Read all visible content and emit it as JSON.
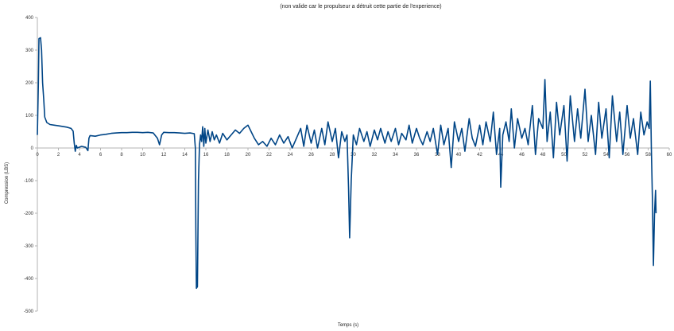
{
  "chart_data": {
    "type": "line",
    "title": "(non valide car le propulseur a détruit cette partie de l'experience)",
    "xlabel": "Temps (s)",
    "ylabel": "Compression (LBS)",
    "xlim": [
      0,
      60
    ],
    "ylim": [
      -500,
      400
    ],
    "x_ticks": [
      0,
      2,
      4,
      6,
      8,
      10,
      12,
      14,
      16,
      18,
      20,
      22,
      24,
      26,
      28,
      30,
      32,
      34,
      36,
      38,
      40,
      42,
      44,
      46,
      48,
      50,
      52,
      54,
      56,
      58,
      60
    ],
    "y_ticks": [
      -500,
      -400,
      -300,
      -200,
      -100,
      0,
      100,
      200,
      300,
      400
    ],
    "grid": false,
    "legend": "none",
    "series_color": "#004586",
    "series": [
      {
        "values": [
          [
            0.0,
            40
          ],
          [
            0.1,
            200
          ],
          [
            0.15,
            335
          ],
          [
            0.3,
            338
          ],
          [
            0.4,
            300
          ],
          [
            0.5,
            200
          ],
          [
            0.6,
            150
          ],
          [
            0.7,
            95
          ],
          [
            0.9,
            78
          ],
          [
            1.2,
            72
          ],
          [
            1.6,
            70
          ],
          [
            2.0,
            68
          ],
          [
            2.4,
            66
          ],
          [
            2.8,
            64
          ],
          [
            3.2,
            60
          ],
          [
            3.4,
            52
          ],
          [
            3.5,
            15
          ],
          [
            3.6,
            -10
          ],
          [
            3.7,
            8
          ],
          [
            3.8,
            0
          ],
          [
            4.2,
            5
          ],
          [
            4.6,
            2
          ],
          [
            4.8,
            -8
          ],
          [
            4.9,
            30
          ],
          [
            5.0,
            38
          ],
          [
            5.5,
            36
          ],
          [
            6.0,
            40
          ],
          [
            6.5,
            42
          ],
          [
            7.0,
            45
          ],
          [
            7.5,
            46
          ],
          [
            8.0,
            47
          ],
          [
            8.5,
            47
          ],
          [
            9.0,
            48
          ],
          [
            9.5,
            48
          ],
          [
            10.0,
            47
          ],
          [
            10.5,
            48
          ],
          [
            11.0,
            46
          ],
          [
            11.4,
            30
          ],
          [
            11.6,
            10
          ],
          [
            11.8,
            40
          ],
          [
            12.0,
            48
          ],
          [
            12.5,
            47
          ],
          [
            13.0,
            47
          ],
          [
            13.5,
            46
          ],
          [
            14.0,
            45
          ],
          [
            14.5,
            46
          ],
          [
            14.9,
            44
          ],
          [
            15.0,
            0
          ],
          [
            15.05,
            -250
          ],
          [
            15.1,
            -430
          ],
          [
            15.2,
            -425
          ],
          [
            15.25,
            -250
          ],
          [
            15.3,
            -100
          ],
          [
            15.4,
            10
          ],
          [
            15.5,
            40
          ],
          [
            15.6,
            20
          ],
          [
            15.7,
            65
          ],
          [
            15.8,
            5
          ],
          [
            15.9,
            60
          ],
          [
            16.0,
            15
          ],
          [
            16.2,
            55
          ],
          [
            16.4,
            20
          ],
          [
            16.6,
            50
          ],
          [
            16.8,
            25
          ],
          [
            17.0,
            40
          ],
          [
            17.3,
            15
          ],
          [
            17.6,
            45
          ],
          [
            18.0,
            25
          ],
          [
            18.4,
            40
          ],
          [
            18.8,
            55
          ],
          [
            19.2,
            45
          ],
          [
            19.6,
            60
          ],
          [
            20.0,
            70
          ],
          [
            20.3,
            50
          ],
          [
            20.6,
            30
          ],
          [
            21.0,
            10
          ],
          [
            21.4,
            20
          ],
          [
            21.8,
            5
          ],
          [
            22.2,
            30
          ],
          [
            22.6,
            10
          ],
          [
            23.0,
            40
          ],
          [
            23.4,
            15
          ],
          [
            23.8,
            35
          ],
          [
            24.2,
            0
          ],
          [
            24.6,
            30
          ],
          [
            25.0,
            60
          ],
          [
            25.3,
            5
          ],
          [
            25.6,
            70
          ],
          [
            26.0,
            15
          ],
          [
            26.3,
            55
          ],
          [
            26.6,
            0
          ],
          [
            27.0,
            60
          ],
          [
            27.3,
            10
          ],
          [
            27.6,
            80
          ],
          [
            28.0,
            20
          ],
          [
            28.3,
            60
          ],
          [
            28.6,
            -30
          ],
          [
            28.9,
            50
          ],
          [
            29.2,
            20
          ],
          [
            29.4,
            40
          ],
          [
            29.55,
            -120
          ],
          [
            29.65,
            -275
          ],
          [
            29.8,
            -100
          ],
          [
            30.0,
            40
          ],
          [
            30.3,
            10
          ],
          [
            30.6,
            60
          ],
          [
            31.0,
            20
          ],
          [
            31.3,
            50
          ],
          [
            31.6,
            5
          ],
          [
            32.0,
            55
          ],
          [
            32.3,
            25
          ],
          [
            32.6,
            60
          ],
          [
            33.0,
            15
          ],
          [
            33.3,
            50
          ],
          [
            33.6,
            20
          ],
          [
            34.0,
            60
          ],
          [
            34.3,
            10
          ],
          [
            34.6,
            45
          ],
          [
            35.0,
            25
          ],
          [
            35.3,
            70
          ],
          [
            35.6,
            15
          ],
          [
            36.0,
            60
          ],
          [
            36.3,
            30
          ],
          [
            36.6,
            10
          ],
          [
            37.0,
            50
          ],
          [
            37.3,
            20
          ],
          [
            37.6,
            60
          ],
          [
            38.0,
            -20
          ],
          [
            38.3,
            70
          ],
          [
            38.6,
            10
          ],
          [
            39.0,
            60
          ],
          [
            39.3,
            -60
          ],
          [
            39.6,
            80
          ],
          [
            40.0,
            20
          ],
          [
            40.3,
            60
          ],
          [
            40.6,
            -10
          ],
          [
            41.0,
            90
          ],
          [
            41.3,
            30
          ],
          [
            41.6,
            5
          ],
          [
            42.0,
            70
          ],
          [
            42.3,
            10
          ],
          [
            42.6,
            80
          ],
          [
            43.0,
            20
          ],
          [
            43.3,
            110
          ],
          [
            43.6,
            -20
          ],
          [
            43.9,
            60
          ],
          [
            44.0,
            -120
          ],
          [
            44.2,
            40
          ],
          [
            44.5,
            80
          ],
          [
            44.8,
            20
          ],
          [
            45.0,
            120
          ],
          [
            45.3,
            0
          ],
          [
            45.6,
            90
          ],
          [
            46.0,
            30
          ],
          [
            46.3,
            60
          ],
          [
            46.6,
            10
          ],
          [
            47.0,
            130
          ],
          [
            47.3,
            -20
          ],
          [
            47.6,
            90
          ],
          [
            48.0,
            60
          ],
          [
            48.2,
            210
          ],
          [
            48.4,
            20
          ],
          [
            48.7,
            110
          ],
          [
            49.0,
            -30
          ],
          [
            49.3,
            140
          ],
          [
            49.6,
            40
          ],
          [
            50.0,
            130
          ],
          [
            50.3,
            -40
          ],
          [
            50.6,
            160
          ],
          [
            51.0,
            20
          ],
          [
            51.3,
            120
          ],
          [
            51.6,
            30
          ],
          [
            52.0,
            180
          ],
          [
            52.3,
            20
          ],
          [
            52.6,
            100
          ],
          [
            53.0,
            -20
          ],
          [
            53.3,
            140
          ],
          [
            53.6,
            30
          ],
          [
            54.0,
            120
          ],
          [
            54.3,
            -30
          ],
          [
            54.6,
            160
          ],
          [
            55.0,
            20
          ],
          [
            55.3,
            110
          ],
          [
            55.6,
            -20
          ],
          [
            56.0,
            130
          ],
          [
            56.3,
            30
          ],
          [
            56.6,
            90
          ],
          [
            57.0,
            -20
          ],
          [
            57.3,
            110
          ],
          [
            57.6,
            40
          ],
          [
            57.9,
            80
          ],
          [
            58.1,
            60
          ],
          [
            58.2,
            205
          ],
          [
            58.3,
            0
          ],
          [
            58.4,
            -150
          ],
          [
            58.5,
            -360
          ],
          [
            58.6,
            -200
          ],
          [
            58.7,
            -130
          ],
          [
            58.75,
            -200
          ]
        ]
      }
    ]
  }
}
